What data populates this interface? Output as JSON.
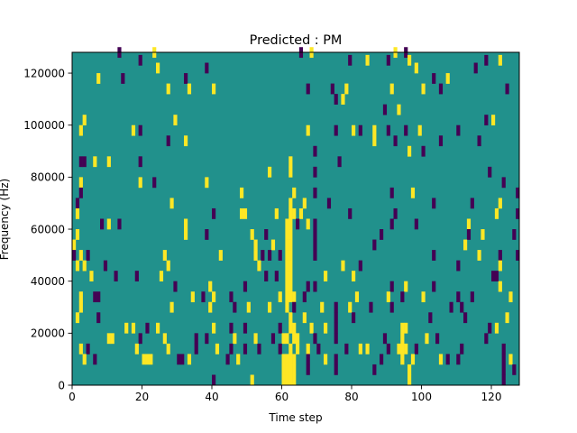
{
  "chart_data": {
    "type": "heatmap",
    "title": "Predicted : PM",
    "xlabel": "Time step",
    "ylabel": "Frequency (Hz)",
    "xlim": [
      0,
      128
    ],
    "ylim": [
      0,
      128000
    ],
    "x_ticks": [
      0,
      20,
      40,
      60,
      80,
      100,
      120
    ],
    "y_ticks": [
      0,
      20000,
      40000,
      60000,
      80000,
      100000,
      120000
    ],
    "grid": false,
    "colormap": "viridis",
    "value_levels": {
      "low": {
        "value": -1,
        "color": "#440154"
      },
      "mid": {
        "value": 0,
        "color": "#21918c"
      },
      "high": {
        "value": 1,
        "color": "#fde725"
      }
    },
    "background_value": 0,
    "n_time_steps": 128,
    "n_freq_bins": 128,
    "freq_bin_width_hz": 1000,
    "cells": [
      [
        13,
        126,
        -1
      ],
      [
        23,
        126,
        1
      ],
      [
        65,
        126,
        -1
      ],
      [
        68,
        126,
        1
      ],
      [
        92,
        126,
        1
      ],
      [
        95,
        126,
        -1
      ],
      [
        19,
        123,
        -1
      ],
      [
        79,
        123,
        -1
      ],
      [
        84,
        123,
        1
      ],
      [
        90,
        123,
        -1
      ],
      [
        96,
        123,
        1
      ],
      [
        118,
        123,
        -1
      ],
      [
        122,
        123,
        1
      ],
      [
        24,
        120,
        1
      ],
      [
        38,
        120,
        -1
      ],
      [
        98,
        120,
        1
      ],
      [
        115,
        120,
        -1
      ],
      [
        7,
        116,
        1
      ],
      [
        14,
        116,
        -1
      ],
      [
        32,
        116,
        -1
      ],
      [
        103,
        116,
        -1
      ],
      [
        107,
        116,
        1
      ],
      [
        27,
        112,
        1
      ],
      [
        33,
        112,
        1
      ],
      [
        40,
        112,
        1
      ],
      [
        67,
        112,
        -1
      ],
      [
        74,
        112,
        -1
      ],
      [
        78,
        112,
        1
      ],
      [
        91,
        112,
        1
      ],
      [
        100,
        112,
        1
      ],
      [
        105,
        112,
        -1
      ],
      [
        124,
        112,
        -1
      ],
      [
        75,
        108,
        -1
      ],
      [
        77,
        108,
        1
      ],
      [
        89,
        104,
        -1
      ],
      [
        93,
        104,
        1
      ],
      [
        3,
        100,
        1
      ],
      [
        29,
        100,
        1
      ],
      [
        118,
        100,
        -1
      ],
      [
        120,
        100,
        1
      ],
      [
        2,
        96,
        1
      ],
      [
        17,
        96,
        1
      ],
      [
        19,
        96,
        -1
      ],
      [
        67,
        96,
        1
      ],
      [
        75,
        96,
        -1
      ],
      [
        80,
        96,
        1
      ],
      [
        82,
        96,
        -1
      ],
      [
        86,
        96,
        1
      ],
      [
        90,
        96,
        -1
      ],
      [
        95,
        96,
        -1
      ],
      [
        99,
        96,
        1
      ],
      [
        110,
        96,
        -1
      ],
      [
        27,
        92,
        -1
      ],
      [
        32,
        92,
        1
      ],
      [
        86,
        92,
        1
      ],
      [
        92,
        92,
        -1
      ],
      [
        105,
        92,
        -1
      ],
      [
        116,
        92,
        -1
      ],
      [
        96,
        88,
        1
      ],
      [
        100,
        88,
        -1
      ],
      [
        69,
        88,
        -1
      ],
      [
        2,
        84,
        -1
      ],
      [
        3,
        84,
        -1
      ],
      [
        6,
        84,
        1
      ],
      [
        10,
        84,
        1
      ],
      [
        19,
        84,
        -1
      ],
      [
        62,
        84,
        1
      ],
      [
        76,
        84,
        -1
      ],
      [
        56,
        80,
        1
      ],
      [
        62,
        80,
        1
      ],
      [
        69,
        80,
        -1
      ],
      [
        119,
        80,
        -1
      ],
      [
        2,
        76,
        1
      ],
      [
        19,
        76,
        1
      ],
      [
        23,
        76,
        -1
      ],
      [
        38,
        76,
        1
      ],
      [
        123,
        76,
        -1
      ],
      [
        2,
        72,
        -1
      ],
      [
        48,
        72,
        1
      ],
      [
        63,
        72,
        1
      ],
      [
        69,
        72,
        -1
      ],
      [
        91,
        72,
        -1
      ],
      [
        97,
        72,
        1
      ],
      [
        127,
        72,
        -1
      ],
      [
        1,
        68,
        -1
      ],
      [
        28,
        68,
        1
      ],
      [
        62,
        68,
        1
      ],
      [
        66,
        68,
        1
      ],
      [
        73,
        68,
        -1
      ],
      [
        103,
        68,
        -1
      ],
      [
        114,
        68,
        -1
      ],
      [
        122,
        68,
        1
      ],
      [
        1,
        64,
        1
      ],
      [
        40,
        64,
        -1
      ],
      [
        48,
        64,
        1
      ],
      [
        49,
        64,
        1
      ],
      [
        58,
        64,
        1
      ],
      [
        62,
        64,
        1
      ],
      [
        63,
        64,
        1
      ],
      [
        65,
        64,
        1
      ],
      [
        79,
        64,
        -1
      ],
      [
        92,
        64,
        -1
      ],
      [
        121,
        64,
        1
      ],
      [
        127,
        64,
        -1
      ],
      [
        8,
        60,
        -1
      ],
      [
        10,
        60,
        1
      ],
      [
        13,
        60,
        -1
      ],
      [
        32,
        60,
        1
      ],
      [
        61,
        60,
        1
      ],
      [
        62,
        60,
        1
      ],
      [
        64,
        60,
        -1
      ],
      [
        67,
        60,
        1
      ],
      [
        69,
        60,
        -1
      ],
      [
        91,
        60,
        -1
      ],
      [
        98,
        60,
        -1
      ],
      [
        113,
        60,
        1
      ],
      [
        1,
        56,
        1
      ],
      [
        32,
        56,
        1
      ],
      [
        38,
        56,
        -1
      ],
      [
        51,
        56,
        1
      ],
      [
        55,
        56,
        -1
      ],
      [
        61,
        56,
        1
      ],
      [
        62,
        56,
        1
      ],
      [
        69,
        56,
        -1
      ],
      [
        88,
        56,
        -1
      ],
      [
        113,
        56,
        -1
      ],
      [
        117,
        56,
        1
      ],
      [
        126,
        56,
        -1
      ],
      [
        0,
        52,
        1
      ],
      [
        52,
        52,
        1
      ],
      [
        57,
        52,
        1
      ],
      [
        61,
        52,
        1
      ],
      [
        62,
        52,
        1
      ],
      [
        69,
        52,
        -1
      ],
      [
        86,
        52,
        -1
      ],
      [
        112,
        52,
        1
      ],
      [
        0,
        48,
        -1
      ],
      [
        2,
        48,
        1
      ],
      [
        4,
        48,
        -1
      ],
      [
        26,
        48,
        1
      ],
      [
        42,
        48,
        1
      ],
      [
        52,
        48,
        1
      ],
      [
        54,
        48,
        -1
      ],
      [
        56,
        48,
        -1
      ],
      [
        59,
        48,
        -1
      ],
      [
        61,
        48,
        1
      ],
      [
        62,
        48,
        1
      ],
      [
        69,
        48,
        -1
      ],
      [
        103,
        48,
        -1
      ],
      [
        116,
        48,
        1
      ],
      [
        122,
        48,
        -1
      ],
      [
        127,
        48,
        -1
      ],
      [
        1,
        44,
        1
      ],
      [
        3,
        44,
        1
      ],
      [
        9,
        44,
        -1
      ],
      [
        27,
        44,
        1
      ],
      [
        53,
        44,
        1
      ],
      [
        61,
        44,
        1
      ],
      [
        62,
        44,
        1
      ],
      [
        77,
        44,
        1
      ],
      [
        82,
        44,
        -1
      ],
      [
        110,
        44,
        -1
      ],
      [
        122,
        44,
        1
      ],
      [
        5,
        40,
        1
      ],
      [
        12,
        40,
        -1
      ],
      [
        18,
        40,
        -1
      ],
      [
        25,
        40,
        1
      ],
      [
        55,
        40,
        -1
      ],
      [
        58,
        40,
        -1
      ],
      [
        61,
        40,
        1
      ],
      [
        62,
        40,
        1
      ],
      [
        72,
        40,
        1
      ],
      [
        80,
        40,
        1
      ],
      [
        120,
        40,
        -1
      ],
      [
        121,
        40,
        -1
      ],
      [
        29,
        36,
        -1
      ],
      [
        39,
        36,
        1
      ],
      [
        49,
        36,
        -1
      ],
      [
        61,
        36,
        1
      ],
      [
        62,
        36,
        1
      ],
      [
        67,
        36,
        -1
      ],
      [
        69,
        36,
        -1
      ],
      [
        91,
        36,
        -1
      ],
      [
        95,
        36,
        1
      ],
      [
        103,
        36,
        -1
      ],
      [
        122,
        36,
        1
      ],
      [
        2,
        32,
        1
      ],
      [
        6,
        32,
        -1
      ],
      [
        7,
        32,
        -1
      ],
      [
        34,
        32,
        1
      ],
      [
        37,
        32,
        -1
      ],
      [
        40,
        32,
        1
      ],
      [
        45,
        32,
        -1
      ],
      [
        59,
        32,
        1
      ],
      [
        61,
        32,
        1
      ],
      [
        62,
        32,
        1
      ],
      [
        63,
        32,
        1
      ],
      [
        66,
        32,
        -1
      ],
      [
        81,
        32,
        1
      ],
      [
        90,
        32,
        1
      ],
      [
        94,
        32,
        -1
      ],
      [
        100,
        32,
        1
      ],
      [
        110,
        32,
        -1
      ],
      [
        114,
        32,
        -1
      ],
      [
        125,
        32,
        1
      ],
      [
        2,
        28,
        1
      ],
      [
        28,
        28,
        1
      ],
      [
        39,
        28,
        1
      ],
      [
        46,
        28,
        -1
      ],
      [
        50,
        28,
        1
      ],
      [
        56,
        28,
        1
      ],
      [
        61,
        28,
        1
      ],
      [
        63,
        28,
        -1
      ],
      [
        71,
        28,
        1
      ],
      [
        75,
        28,
        -1
      ],
      [
        79,
        28,
        1
      ],
      [
        85,
        28,
        -1
      ],
      [
        91,
        28,
        -1
      ],
      [
        108,
        28,
        -1
      ],
      [
        111,
        28,
        -1
      ],
      [
        1,
        24,
        1
      ],
      [
        7,
        24,
        -1
      ],
      [
        62,
        24,
        1
      ],
      [
        66,
        24,
        1
      ],
      [
        75,
        24,
        -1
      ],
      [
        80,
        24,
        -1
      ],
      [
        102,
        24,
        -1
      ],
      [
        112,
        24,
        -1
      ],
      [
        124,
        24,
        1
      ],
      [
        15,
        20,
        1
      ],
      [
        17,
        20,
        1
      ],
      [
        21,
        20,
        -1
      ],
      [
        24,
        20,
        1
      ],
      [
        40,
        20,
        1
      ],
      [
        45,
        20,
        -1
      ],
      [
        49,
        20,
        -1
      ],
      [
        59,
        20,
        -1
      ],
      [
        62,
        20,
        1
      ],
      [
        63,
        20,
        1
      ],
      [
        68,
        20,
        1
      ],
      [
        72,
        20,
        1
      ],
      [
        75,
        20,
        -1
      ],
      [
        94,
        20,
        1
      ],
      [
        95,
        20,
        1
      ],
      [
        119,
        20,
        -1
      ],
      [
        121,
        20,
        1
      ],
      [
        10,
        16,
        1
      ],
      [
        11,
        16,
        1
      ],
      [
        19,
        16,
        -1
      ],
      [
        26,
        16,
        1
      ],
      [
        35,
        16,
        -1
      ],
      [
        38,
        16,
        -1
      ],
      [
        46,
        16,
        1
      ],
      [
        52,
        16,
        1
      ],
      [
        57,
        16,
        -1
      ],
      [
        60,
        16,
        1
      ],
      [
        61,
        16,
        1
      ],
      [
        63,
        16,
        1
      ],
      [
        64,
        16,
        1
      ],
      [
        69,
        16,
        -1
      ],
      [
        75,
        16,
        -1
      ],
      [
        89,
        16,
        -1
      ],
      [
        94,
        16,
        1
      ],
      [
        101,
        16,
        1
      ],
      [
        104,
        16,
        -1
      ],
      [
        118,
        16,
        -1
      ],
      [
        2,
        12,
        1
      ],
      [
        4,
        12,
        -1
      ],
      [
        18,
        12,
        1
      ],
      [
        27,
        12,
        1
      ],
      [
        35,
        12,
        -1
      ],
      [
        41,
        12,
        1
      ],
      [
        45,
        12,
        -1
      ],
      [
        49,
        12,
        -1
      ],
      [
        53,
        12,
        -1
      ],
      [
        59,
        12,
        -1
      ],
      [
        62,
        12,
        1
      ],
      [
        64,
        12,
        1
      ],
      [
        67,
        12,
        1
      ],
      [
        70,
        12,
        -1
      ],
      [
        78,
        12,
        -1
      ],
      [
        82,
        12,
        1
      ],
      [
        84,
        12,
        1
      ],
      [
        90,
        12,
        -1
      ],
      [
        93,
        12,
        1
      ],
      [
        94,
        12,
        1
      ],
      [
        95,
        12,
        1
      ],
      [
        98,
        12,
        -1
      ],
      [
        111,
        12,
        -1
      ],
      [
        123,
        12,
        -1
      ],
      [
        3,
        8,
        1
      ],
      [
        6,
        8,
        -1
      ],
      [
        20,
        8,
        1
      ],
      [
        21,
        8,
        1
      ],
      [
        22,
        8,
        1
      ],
      [
        30,
        8,
        -1
      ],
      [
        31,
        8,
        -1
      ],
      [
        33,
        8,
        1
      ],
      [
        44,
        8,
        -1
      ],
      [
        47,
        8,
        1
      ],
      [
        60,
        8,
        1
      ],
      [
        61,
        8,
        1
      ],
      [
        62,
        8,
        1
      ],
      [
        63,
        8,
        1
      ],
      [
        67,
        8,
        -1
      ],
      [
        72,
        8,
        1
      ],
      [
        75,
        8,
        -1
      ],
      [
        88,
        8,
        -1
      ],
      [
        94,
        8,
        1
      ],
      [
        97,
        8,
        1
      ],
      [
        105,
        8,
        1
      ],
      [
        107,
        8,
        -1
      ],
      [
        110,
        8,
        -1
      ],
      [
        123,
        8,
        -1
      ],
      [
        125,
        8,
        1
      ],
      [
        60,
        4,
        1
      ],
      [
        61,
        4,
        1
      ],
      [
        62,
        4,
        1
      ],
      [
        63,
        4,
        1
      ],
      [
        67,
        4,
        -1
      ],
      [
        75,
        4,
        -1
      ],
      [
        86,
        4,
        -1
      ],
      [
        96,
        4,
        1
      ],
      [
        123,
        4,
        -1
      ],
      [
        126,
        4,
        -1
      ],
      [
        40,
        0,
        -1
      ],
      [
        51,
        0,
        1
      ],
      [
        60,
        0,
        1
      ],
      [
        61,
        0,
        1
      ],
      [
        62,
        0,
        1
      ],
      [
        63,
        0,
        1
      ],
      [
        96,
        0,
        1
      ],
      [
        123,
        0,
        -1
      ]
    ],
    "cell_height_bins": 4
  }
}
